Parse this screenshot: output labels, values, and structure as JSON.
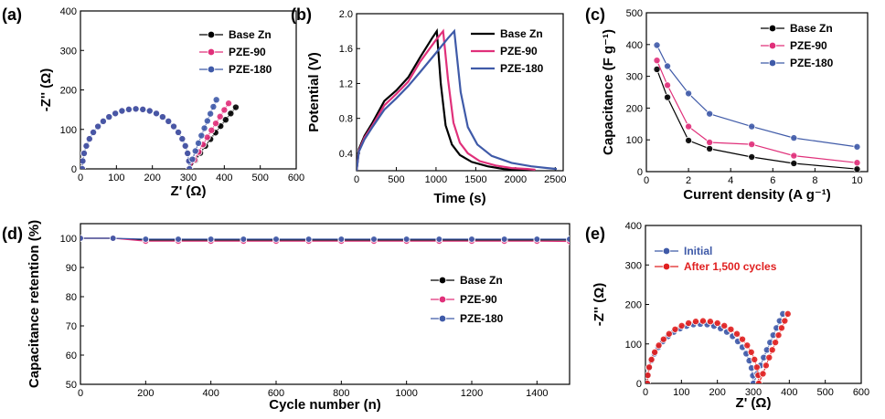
{
  "figure": {
    "colors": {
      "base": "#000000",
      "pze90": "#e0307a",
      "pze180": "#3f5aa8",
      "initial": "#3f5aa8",
      "after": "#e02020"
    },
    "panels": [
      {
        "id": "a",
        "label": "(a)",
        "type": "scatter-line",
        "xlabel": "Z' (Ω)",
        "ylabel": "-Z'' (Ω)",
        "xlim": [
          0,
          600
        ],
        "ylim": [
          0,
          400
        ],
        "xticks": [
          0,
          100,
          200,
          300,
          400,
          500,
          600
        ],
        "yticks": [
          0,
          100,
          200,
          300,
          400
        ],
        "legend_position": "top-right",
        "series": [
          {
            "name": "Base Zn",
            "color": "#000000",
            "kind": "nyquist",
            "R": 298,
            "x0": 5,
            "tailStart": 305,
            "tailEnd": 432,
            "tailTop": 156,
            "points": 24
          },
          {
            "name": "PZE-90",
            "color": "#e0307a",
            "kind": "nyquist",
            "R": 298,
            "x0": 5,
            "tailStart": 305,
            "tailEnd": 412,
            "tailTop": 166,
            "points": 24
          },
          {
            "name": "PZE-180",
            "color": "#3f5aa8",
            "kind": "nyquist",
            "R": 298,
            "x0": 5,
            "tailStart": 303,
            "tailEnd": 378,
            "tailTop": 175,
            "points": 24
          }
        ]
      },
      {
        "id": "b",
        "label": "(b)",
        "type": "line",
        "xlabel": "Time (s)",
        "ylabel": "Potential (V)",
        "xlim": [
          0,
          2600
        ],
        "ylim": [
          0.2,
          2.0
        ],
        "xticks": [
          0,
          500,
          1000,
          1500,
          2000,
          2500
        ],
        "yticks": [
          0.4,
          0.8,
          1.2,
          1.6,
          2.0
        ],
        "legend_position": "top-right",
        "series": [
          {
            "name": "Base Zn",
            "color": "#000000",
            "x": [
              0,
              30,
              100,
              200,
              350,
              500,
              650,
              800,
              950,
              1010,
              1060,
              1120,
              1200,
              1300,
              1450,
              1650,
              1850,
              2050,
              2250
            ],
            "y": [
              0.2,
              0.45,
              0.6,
              0.75,
              1.0,
              1.12,
              1.27,
              1.5,
              1.72,
              1.8,
              1.2,
              0.72,
              0.5,
              0.38,
              0.3,
              0.25,
              0.22,
              0.21,
              0.2
            ]
          },
          {
            "name": "PZE-90",
            "color": "#e0307a",
            "x": [
              0,
              30,
              100,
              200,
              350,
              500,
              650,
              800,
              1000,
              1090,
              1150,
              1220,
              1300,
              1400,
              1550,
              1750,
              1950,
              2150,
              2250
            ],
            "y": [
              0.2,
              0.43,
              0.58,
              0.72,
              0.95,
              1.08,
              1.22,
              1.45,
              1.7,
              1.8,
              1.25,
              0.75,
              0.52,
              0.4,
              0.31,
              0.26,
              0.23,
              0.22,
              0.21
            ]
          },
          {
            "name": "PZE-180",
            "color": "#3f5aa8",
            "x": [
              0,
              30,
              100,
              200,
              350,
              500,
              650,
              800,
              1000,
              1150,
              1230,
              1310,
              1400,
              1520,
              1700,
              1950,
              2200,
              2400,
              2520
            ],
            "y": [
              0.2,
              0.42,
              0.56,
              0.7,
              0.9,
              1.03,
              1.17,
              1.33,
              1.55,
              1.72,
              1.8,
              1.1,
              0.7,
              0.5,
              0.37,
              0.29,
              0.25,
              0.23,
              0.22
            ]
          }
        ]
      },
      {
        "id": "c",
        "label": "(c)",
        "type": "scatter-line",
        "xlabel": "Current density (A g⁻¹)",
        "ylabel": "Capacitance (F g⁻¹)",
        "xlim": [
          0,
          10.5
        ],
        "ylim": [
          0,
          500
        ],
        "xticks": [
          0,
          2,
          4,
          6,
          8,
          10
        ],
        "yticks": [
          0,
          100,
          200,
          300,
          400,
          500
        ],
        "legend_position": "top-right",
        "series": [
          {
            "name": "Base Zn",
            "color": "#000000",
            "x": [
              0.5,
              1,
              2,
              3,
              5,
              7,
              10
            ],
            "y": [
              322,
              234,
              98,
              72,
              46,
              26,
              8
            ]
          },
          {
            "name": "PZE-90",
            "color": "#e0307a",
            "x": [
              0.5,
              1,
              2,
              3,
              5,
              7,
              10
            ],
            "y": [
              350,
              272,
              142,
              92,
              86,
              50,
              28
            ]
          },
          {
            "name": "PZE-180",
            "color": "#3f5aa8",
            "x": [
              0.5,
              1,
              2,
              3,
              5,
              7,
              10
            ],
            "y": [
              398,
              332,
              246,
              182,
              142,
              106,
              78
            ]
          }
        ]
      },
      {
        "id": "d",
        "label": "(d)",
        "type": "scatter-line",
        "xlabel": "Cycle number (n)",
        "ylabel": "Capacitance retention (%)",
        "xlim": [
          0,
          1500
        ],
        "ylim": [
          50,
          105
        ],
        "xticks": [
          0,
          200,
          400,
          600,
          800,
          1000,
          1200,
          1400
        ],
        "yticks": [
          50,
          60,
          70,
          80,
          90,
          100
        ],
        "legend_position": "center-right",
        "series": [
          {
            "name": "Base Zn",
            "color": "#000000",
            "x": [
              0,
              100,
              200,
              300,
              400,
              500,
              600,
              700,
              800,
              900,
              1000,
              1100,
              1200,
              1300,
              1400,
              1500
            ],
            "y": [
              100,
              100,
              99.4,
              99.4,
              99.4,
              99.4,
              99.4,
              99.4,
              99.4,
              99.4,
              99.4,
              99.4,
              99.4,
              99.4,
              99.4,
              99.4
            ]
          },
          {
            "name": "PZE-90",
            "color": "#e0307a",
            "x": [
              0,
              100,
              200,
              300,
              400,
              500,
              600,
              700,
              800,
              900,
              1000,
              1100,
              1200,
              1300,
              1400,
              1500
            ],
            "y": [
              100,
              100,
              99.0,
              99.0,
              99.0,
              99.0,
              99.0,
              99.0,
              99.0,
              99.0,
              99.0,
              99.0,
              99.0,
              99.0,
              99.0,
              98.9
            ]
          },
          {
            "name": "PZE-180",
            "color": "#3f5aa8",
            "x": [
              0,
              100,
              200,
              300,
              400,
              500,
              600,
              700,
              800,
              900,
              1000,
              1100,
              1200,
              1300,
              1400,
              1500
            ],
            "y": [
              100,
              100,
              99.7,
              99.7,
              99.7,
              99.7,
              99.7,
              99.7,
              99.7,
              99.7,
              99.7,
              99.7,
              99.7,
              99.7,
              99.7,
              99.7
            ]
          }
        ]
      },
      {
        "id": "e",
        "label": "(e)",
        "type": "scatter-line",
        "xlabel": "Z' (Ω)",
        "ylabel": "-Z'' (Ω)",
        "xlim": [
          0,
          600
        ],
        "ylim": [
          0,
          400
        ],
        "xticks": [
          0,
          100,
          200,
          300,
          400,
          500,
          600
        ],
        "yticks": [
          0,
          100,
          200,
          300,
          400
        ],
        "legend_position": "top-right",
        "series": [
          {
            "name": "Initial",
            "color": "#3f5aa8",
            "kind": "nyquist",
            "R": 295,
            "x0": 5,
            "tailStart": 302,
            "tailEnd": 382,
            "tailTop": 176,
            "points": 24
          },
          {
            "name": "After 1,500 cycles",
            "color": "#e02020",
            "kind": "nyquist",
            "R": 310,
            "x0": 5,
            "tailStart": 318,
            "tailEnd": 396,
            "tailTop": 176,
            "points": 24
          }
        ]
      }
    ]
  }
}
